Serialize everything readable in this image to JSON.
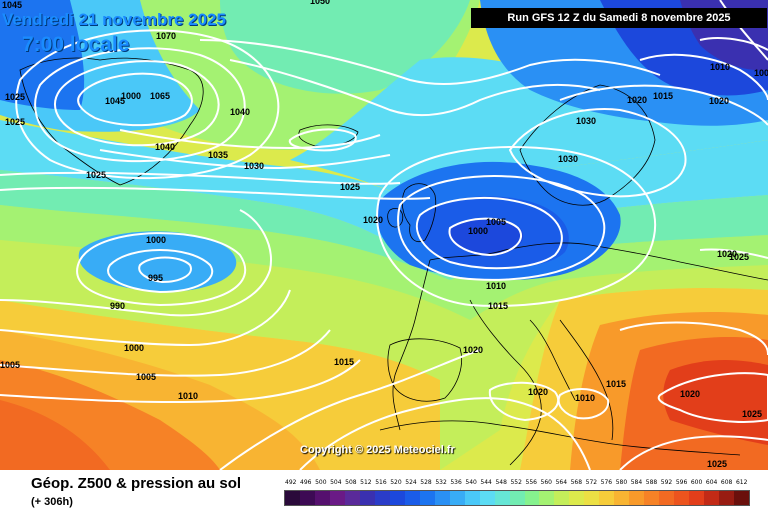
{
  "map": {
    "date_line": "Vendredi 21 novembre 2025",
    "time_line": "7:00 locale",
    "run_info": "Run GFS 12 Z du Samedi 8 novembre 2025",
    "copyright": "Copyright © 2025 Meteociel.fr",
    "isobar_labels": [
      "1045",
      "1050",
      "1070",
      "1025",
      "1025",
      "1045",
      "1065",
      "1040",
      "1040",
      "1035",
      "1030",
      "1025",
      "1025",
      "1020",
      "1005",
      "1000",
      "1010",
      "1015",
      "1020",
      "1030",
      "1030",
      "1015",
      "1020",
      "1010",
      "1005",
      "1000",
      "995",
      "990",
      "1000",
      "1005",
      "1010",
      "1015",
      "1020",
      "1020",
      "1010",
      "1015",
      "1020",
      "1025",
      "1025",
      "1025",
      "1020",
      "1005",
      "1000"
    ],
    "colors": {
      "c492": "#2a0a3a",
      "c496": "#3d0a54",
      "c500": "#55106e",
      "c504": "#6a1a86",
      "c508": "#5a2a9a",
      "c512": "#3a30b0",
      "c516": "#2a3cc8",
      "c520": "#1c48dc",
      "c524": "#1a5ce8",
      "c528": "#1c74f0",
      "c532": "#2a90f4",
      "c536": "#38acf6",
      "c540": "#4ac8f8",
      "c544": "#5cdcf4",
      "c548": "#66e6d6",
      "c552": "#72ecb2",
      "c556": "#86f28e",
      "c560": "#a4f272",
      "c564": "#c4ee5a",
      "c568": "#dcea4c",
      "c572": "#ece044",
      "c576": "#f6cc3a",
      "c580": "#f8b432",
      "c584": "#f89a2a",
      "c588": "#f68226",
      "c592": "#f26a22",
      "c596": "#ec541e",
      "c600": "#e23e1a",
      "c604": "#c22a16",
      "c608": "#981c12",
      "c612": "#6a100c",
      "isobar": "#ffffff",
      "coast": "#000000",
      "title_blue": "#1a8cff"
    }
  },
  "footer": {
    "title": "Géop. Z500 & pression au sol",
    "subtitle": "(+ 306h)"
  },
  "scale": {
    "labels": [
      "492",
      "496",
      "500",
      "504",
      "508",
      "512",
      "516",
      "520",
      "524",
      "528",
      "532",
      "536",
      "540",
      "544",
      "548",
      "552",
      "556",
      "560",
      "564",
      "568",
      "572",
      "576",
      "580",
      "584",
      "588",
      "592",
      "596",
      "600",
      "604",
      "608",
      "612"
    ]
  }
}
